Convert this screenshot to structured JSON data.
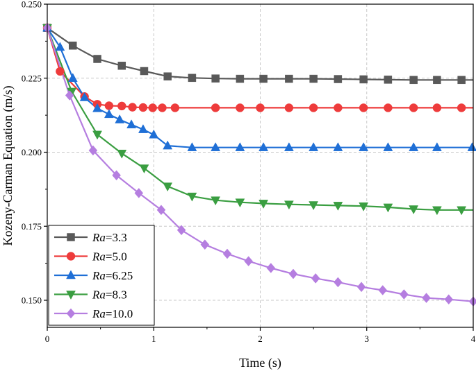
{
  "chart_data": {
    "type": "line",
    "title": "",
    "xlabel": "Time (s)",
    "ylabel": "Kozeny-Carman Equation (m/s)",
    "xlim": [
      0,
      4
    ],
    "ylim": [
      0.14,
      0.25
    ],
    "xticks": [
      0,
      1,
      2,
      3,
      4
    ],
    "xtick_labels": [
      "0",
      "1",
      "2",
      "3",
      "4"
    ],
    "yticks": [
      0.15,
      0.175,
      0.2,
      0.225,
      0.25
    ],
    "ytick_labels": [
      "0.150",
      "0.175",
      "0.200",
      "0.225",
      "0.250"
    ],
    "grid": "dashed",
    "legend_position": "bottom-left",
    "series": [
      {
        "name": "Ra=3.3",
        "legend_prefix": "Ra",
        "legend_suffix": "=3.3",
        "color": "#595959",
        "marker": "square",
        "x": [
          0.0,
          0.24,
          0.47,
          0.7,
          0.91,
          1.13,
          1.36,
          1.58,
          1.81,
          2.03,
          2.27,
          2.5,
          2.73,
          2.97,
          3.2,
          3.44,
          3.66,
          3.89
        ],
        "y": [
          0.242,
          0.236,
          0.2315,
          0.2292,
          0.2274,
          0.2256,
          0.2251,
          0.2249,
          0.2248,
          0.2248,
          0.2248,
          0.2248,
          0.2247,
          0.2246,
          0.2245,
          0.2244,
          0.2244,
          0.2244
        ],
        "line_end": 4.0
      },
      {
        "name": "Ra=5.0",
        "legend_prefix": "Ra",
        "legend_suffix": "=5.0",
        "color": "#ee3b3b",
        "marker": "circle",
        "x": [
          0.0,
          0.12,
          0.35,
          0.47,
          0.58,
          0.7,
          0.8,
          0.9,
          0.99,
          1.08,
          1.2,
          1.58,
          1.81,
          2.0,
          2.27,
          2.5,
          2.73,
          2.97,
          3.2,
          3.44,
          3.66,
          3.89
        ],
        "y": [
          0.242,
          0.2273,
          0.2188,
          0.2162,
          0.2157,
          0.2156,
          0.2152,
          0.2151,
          0.215,
          0.215,
          0.215,
          0.215,
          0.215,
          0.215,
          0.215,
          0.215,
          0.215,
          0.215,
          0.215,
          0.215,
          0.215,
          0.215
        ],
        "line_end": 4.0
      },
      {
        "name": "Ra=6.25",
        "legend_prefix": "Ra",
        "legend_suffix": "=6.25",
        "color": "#1f6fd6",
        "marker": "triangle-up",
        "x": [
          0.0,
          0.12,
          0.24,
          0.35,
          0.47,
          0.58,
          0.68,
          0.79,
          0.9,
          1.0,
          1.13,
          1.36,
          1.58,
          1.81,
          2.03,
          2.27,
          2.5,
          2.73,
          2.97,
          3.2,
          3.44,
          3.66,
          3.99
        ],
        "y": [
          0.242,
          0.2355,
          0.225,
          0.2185,
          0.2148,
          0.2128,
          0.211,
          0.2093,
          0.2077,
          0.2059,
          0.2022,
          0.2016,
          0.2016,
          0.2016,
          0.2016,
          0.2016,
          0.2016,
          0.2016,
          0.2016,
          0.2016,
          0.2016,
          0.2016,
          0.2016
        ],
        "line_end": 4.0
      },
      {
        "name": "Ra=8.3",
        "legend_prefix": "Ra",
        "legend_suffix": "=8.3",
        "color": "#3a9e41",
        "marker": "triangle-down",
        "x": [
          0.0,
          0.23,
          0.47,
          0.7,
          0.91,
          1.13,
          1.36,
          1.58,
          1.81,
          2.03,
          2.27,
          2.5,
          2.73,
          2.97,
          3.2,
          3.44,
          3.66,
          3.89
        ],
        "y": [
          0.242,
          0.2205,
          0.206,
          0.1996,
          0.1946,
          0.1885,
          0.1851,
          0.1838,
          0.1831,
          0.1827,
          0.1824,
          0.1822,
          0.182,
          0.1818,
          0.1814,
          0.1808,
          0.1805,
          0.1805
        ],
        "line_end": 4.0
      },
      {
        "name": "Ra=10.0",
        "legend_prefix": "Ra",
        "legend_suffix": "=10.0",
        "color": "#b57ee0",
        "marker": "diamond",
        "x": [
          0.0,
          0.21,
          0.43,
          0.65,
          0.86,
          1.07,
          1.26,
          1.48,
          1.69,
          1.89,
          2.1,
          2.31,
          2.52,
          2.73,
          2.95,
          3.15,
          3.35,
          3.56,
          3.77,
          4.0
        ],
        "y": [
          0.242,
          0.2192,
          0.2006,
          0.1922,
          0.1862,
          0.1805,
          0.1737,
          0.1688,
          0.1657,
          0.1632,
          0.1609,
          0.1589,
          0.1574,
          0.1561,
          0.1545,
          0.1534,
          0.152,
          0.1508,
          0.1503,
          0.1496
        ],
        "line_end": 4.0
      }
    ]
  }
}
